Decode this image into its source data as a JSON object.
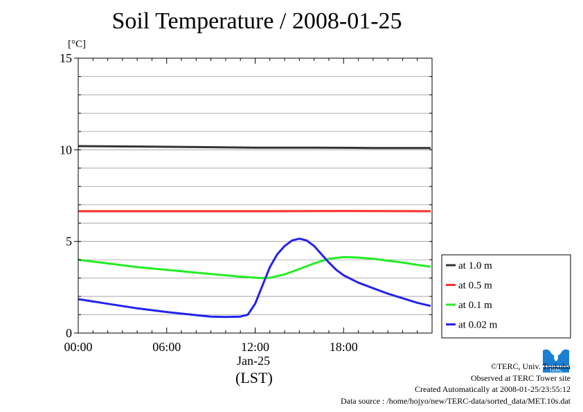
{
  "chart_data": {
    "type": "line",
    "title": "Soil Temperature / 2008-01-25",
    "ylabel": "[°C]",
    "xlabel": "(LST)",
    "date_label": "Jan-25",
    "ylim": [
      0,
      15
    ],
    "yticks": [
      0,
      5,
      10,
      15
    ],
    "xlim_hours": [
      0,
      24
    ],
    "xticks": [
      {
        "h": 0,
        "label": "00:00"
      },
      {
        "h": 6,
        "label": "06:00"
      },
      {
        "h": 12,
        "label": "12:00"
      },
      {
        "h": 18,
        "label": "18:00"
      }
    ],
    "grid": true,
    "legend_position": "right",
    "series": [
      {
        "name": "at 1.0 m",
        "color": "#333333",
        "points": [
          [
            0,
            10.2
          ],
          [
            4,
            10.18
          ],
          [
            8,
            10.15
          ],
          [
            12,
            10.12
          ],
          [
            16,
            10.12
          ],
          [
            20,
            10.1
          ],
          [
            23.9,
            10.1
          ]
        ]
      },
      {
        "name": "at 0.5 m",
        "color": "#ff2a2a",
        "points": [
          [
            0,
            6.65
          ],
          [
            6,
            6.65
          ],
          [
            12,
            6.65
          ],
          [
            18,
            6.66
          ],
          [
            23.9,
            6.65
          ]
        ]
      },
      {
        "name": "at 0.1 m",
        "color": "#22ee22",
        "points": [
          [
            0,
            4.0
          ],
          [
            2,
            3.8
          ],
          [
            4,
            3.6
          ],
          [
            6,
            3.45
          ],
          [
            8,
            3.3
          ],
          [
            10,
            3.15
          ],
          [
            11,
            3.08
          ],
          [
            12,
            3.02
          ],
          [
            12.5,
            3.0
          ],
          [
            13,
            3.02
          ],
          [
            14,
            3.2
          ],
          [
            15,
            3.5
          ],
          [
            16,
            3.8
          ],
          [
            17,
            4.05
          ],
          [
            18,
            4.15
          ],
          [
            19,
            4.12
          ],
          [
            20,
            4.05
          ],
          [
            21,
            3.95
          ],
          [
            22,
            3.85
          ],
          [
            23,
            3.72
          ],
          [
            23.9,
            3.62
          ]
        ]
      },
      {
        "name": "at 0.02 m",
        "color": "#2222ee",
        "points": [
          [
            0,
            1.85
          ],
          [
            2,
            1.6
          ],
          [
            4,
            1.35
          ],
          [
            6,
            1.15
          ],
          [
            8,
            0.98
          ],
          [
            9,
            0.9
          ],
          [
            10,
            0.88
          ],
          [
            11,
            0.9
          ],
          [
            11.5,
            1.0
          ],
          [
            12,
            1.6
          ],
          [
            12.5,
            2.6
          ],
          [
            13,
            3.6
          ],
          [
            13.5,
            4.3
          ],
          [
            14,
            4.75
          ],
          [
            14.5,
            5.05
          ],
          [
            15,
            5.15
          ],
          [
            15.5,
            5.05
          ],
          [
            16,
            4.75
          ],
          [
            16.5,
            4.3
          ],
          [
            17,
            3.85
          ],
          [
            17.5,
            3.45
          ],
          [
            18,
            3.15
          ],
          [
            19,
            2.75
          ],
          [
            20,
            2.45
          ],
          [
            21,
            2.15
          ],
          [
            22,
            1.9
          ],
          [
            23,
            1.65
          ],
          [
            23.9,
            1.48
          ]
        ]
      }
    ]
  },
  "credits": {
    "copyright": "©TERC, Univ. Tsukuba",
    "observed": "Observed at TERC Tower site",
    "created": "Created Automatically at 2008-01-25/23:55:12",
    "source": "Data source : /home/hojyo/new/TERC-data/sorted_data/MET.10s.dat"
  },
  "logo": {
    "text": "TERC",
    "color": "#1a7fd4"
  }
}
